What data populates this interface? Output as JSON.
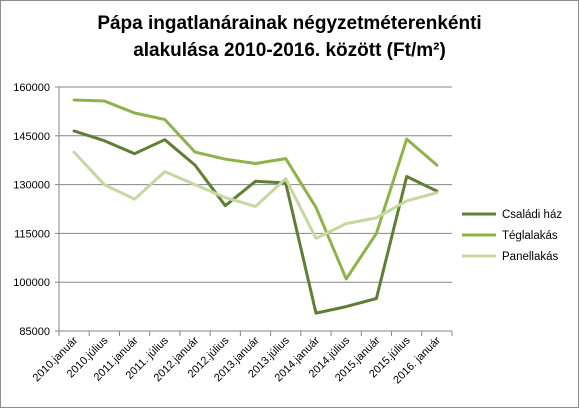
{
  "chart_data": {
    "type": "line",
    "title_line1": "Pápa ingatlanárainak négyzetméterenkénti",
    "title_line2": "alakulása 2010-2016.  között (Ft/m²)",
    "x": [
      "2010.január",
      "2010.július",
      "2011.január",
      "2011. július",
      "2012.január",
      "2012.július",
      "2013.január",
      "2013.július",
      "2014.január",
      "2014.július",
      "2015.január",
      "2015.július",
      "2016. január"
    ],
    "ylim": [
      85000,
      160000
    ],
    "yticks": [
      85000,
      100000,
      115000,
      130000,
      145000,
      160000
    ],
    "ytick_labels": [
      "85000",
      "100000",
      "115000",
      "130000",
      "145000",
      "160000"
    ],
    "grid": true,
    "legend_position": "right",
    "series": [
      {
        "name": "Családi ház",
        "color": "#5f7f35",
        "values": [
          146500,
          143500,
          139500,
          143800,
          136000,
          123500,
          131000,
          130500,
          90500,
          92500,
          95000,
          132500,
          128000
        ]
      },
      {
        "name": "Téglalakás",
        "color": "#8db34a",
        "values": [
          156000,
          155700,
          152000,
          150000,
          140000,
          137800,
          136500,
          138000,
          123000,
          101000,
          115000,
          144000,
          136000
        ]
      },
      {
        "name": "Panellakás",
        "color": "#c4d8a0",
        "values": [
          140000,
          130000,
          125500,
          134000,
          130000,
          126000,
          123300,
          131800,
          113500,
          118000,
          119800,
          125000,
          127500
        ]
      }
    ]
  }
}
